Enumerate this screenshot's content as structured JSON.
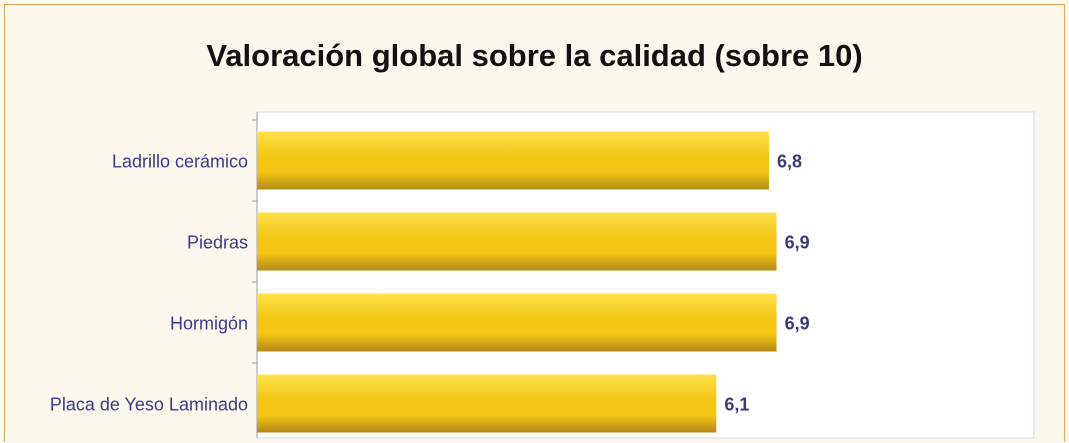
{
  "chart_data": {
    "type": "bar",
    "orientation": "horizontal",
    "title": "Valoración global sobre la calidad (sobre 10)",
    "categories": [
      "Ladrillo cerámico",
      "Piedras",
      "Hormigón",
      "Placa de Yeso Laminado"
    ],
    "values": [
      6.8,
      6.9,
      6.9,
      6.1
    ],
    "value_labels": [
      "6,8",
      "6,9",
      "6,9",
      "6,1"
    ],
    "xlim": [
      0,
      10
    ],
    "xlabel": "",
    "ylabel": "",
    "grid": false,
    "legend": "none",
    "colors": {
      "bar_light": "#ffe34a",
      "bar_mid": "#f2c414",
      "bar_dark": "#b58a1a",
      "category_label": "#3a3a8c",
      "value_label": "#3a3a7a",
      "frame": "#e6a35a"
    }
  }
}
